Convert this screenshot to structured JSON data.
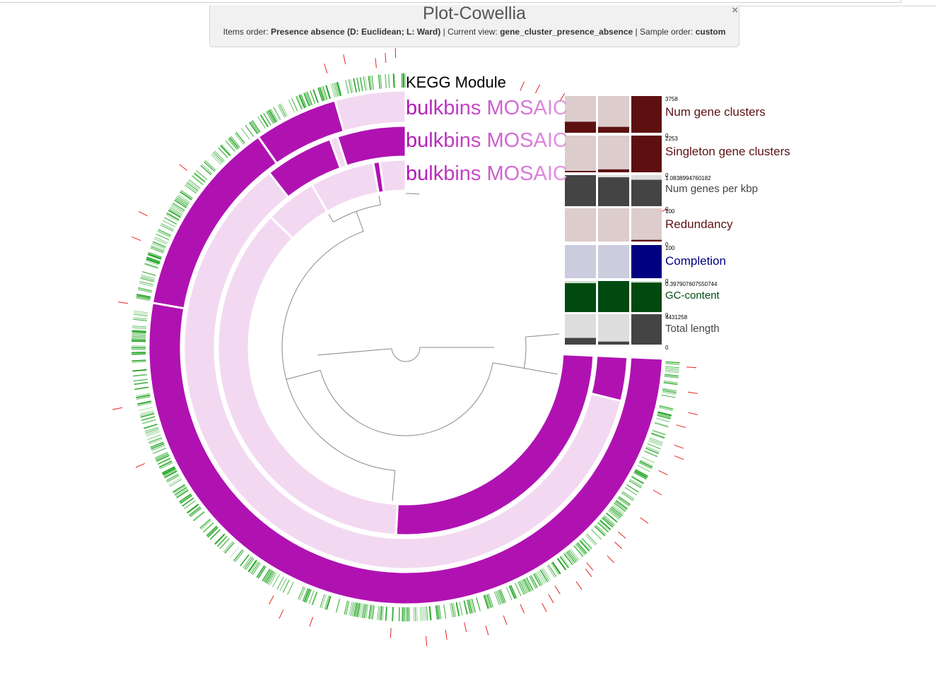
{
  "title_panel": {
    "title": "Plot-Cowellia",
    "items_order_label": "Items order:",
    "items_order_value": "Presence absence (D: Euclidean; L: Ward)",
    "current_view_label": "Current view:",
    "current_view_value": "gene_cluster_presence_absence",
    "sample_order_label": "Sample order:",
    "sample_order_value": "custom",
    "separator": "|",
    "close_icon": "×"
  },
  "layer_labels": {
    "kegg": "KEGG Module",
    "sample_1": "bulkbins MOSAIC",
    "sample_2": "bulkbins MOSAIC",
    "sample_3": "bulkbins MOSAIC"
  },
  "colors": {
    "presence": "#b012b2",
    "absence": "#f2d9f1",
    "kegg_green": "#119e11",
    "marker_red": "#e8221f",
    "tree": "#888888"
  },
  "bar_panels": [
    {
      "label": "Num gene clusters",
      "max": "3758",
      "min": "0",
      "color": "#5e1010",
      "bg": "#dccccc",
      "label_color": "#5e1010",
      "fractions": [
        0.3,
        0.16,
        1.0
      ]
    },
    {
      "label": "Singleton gene clusters",
      "max": "2253",
      "min": "0",
      "color": "#5e1010",
      "bg": "#dccccc",
      "label_color": "#5e1010",
      "fractions": [
        0.02,
        0.08,
        1.0
      ]
    },
    {
      "label": "Num genes per kbp",
      "max": "1.0838994760182",
      "min": "0",
      "color": "#444444",
      "bg": "#dddddd",
      "label_color": "#444444",
      "fractions": [
        1.0,
        0.93,
        0.85
      ]
    },
    {
      "label": "Redundancy",
      "max": "100",
      "min": "0",
      "color": "#5e1010",
      "bg": "#dccccc",
      "label_color": "#5e1010",
      "fractions": [
        0.0,
        0.0,
        0.05
      ]
    },
    {
      "label": "Completion",
      "max": "100",
      "min": "0",
      "color": "#000080",
      "bg": "#ccccdf",
      "label_color": "#000080",
      "fractions": [
        0.0,
        0.0,
        1.0
      ]
    },
    {
      "label": "GC-content",
      "max": "0.397907607550744",
      "min": "0",
      "color": "#004a10",
      "bg": "#d0ddd0",
      "label_color": "#004a10",
      "fractions": [
        0.93,
        1.0,
        0.95
      ]
    },
    {
      "label": "Total length",
      "max": "4431258",
      "min": "0",
      "color": "#444444",
      "bg": "#dddddd",
      "label_color": "#444444",
      "fractions": [
        0.22,
        0.1,
        1.0
      ]
    }
  ]
}
